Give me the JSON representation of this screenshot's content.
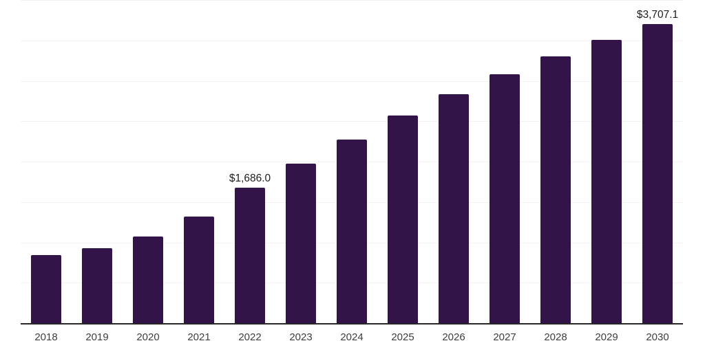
{
  "chart_data": {
    "type": "bar",
    "title": "",
    "xlabel": "",
    "ylabel": "",
    "categories": [
      "2018",
      "2019",
      "2020",
      "2021",
      "2022",
      "2023",
      "2024",
      "2025",
      "2026",
      "2027",
      "2028",
      "2029",
      "2030"
    ],
    "values": [
      855,
      935,
      1083,
      1330,
      1686.0,
      1983,
      2285,
      2575,
      2845,
      3090,
      3313,
      3516,
      3707.1
    ],
    "ylim": [
      0,
      4000
    ],
    "grid_step": 500,
    "grid": "horizontal-only",
    "legend": "none",
    "y_axis_ticks_visible": false,
    "data_labels": [
      {
        "category": "2022",
        "text": "$1,686.0"
      },
      {
        "category": "2030",
        "text": "$3,707.1"
      }
    ],
    "colors": {
      "bar": "#321449",
      "value_label": "#1c1c1c",
      "tick_label": "#3d3d3d",
      "axis_line": "#262626",
      "gridline": "#f2f2f2",
      "background": "#ffffff"
    }
  }
}
